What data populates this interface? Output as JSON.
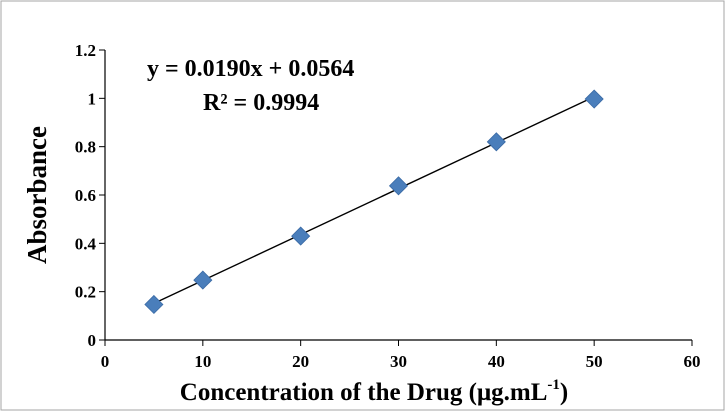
{
  "chart_data": {
    "type": "scatter",
    "title": "",
    "xlabel": "Concentration of the Drug (μg.mL",
    "xlabel_superscript": "-1",
    "xlabel_suffix": ")",
    "ylabel": "Absorbance",
    "xlim": [
      0,
      60
    ],
    "ylim": [
      0,
      1.2
    ],
    "x_ticks": [
      "0",
      "10",
      "20",
      "30",
      "40",
      "50",
      "60"
    ],
    "y_ticks": [
      "0",
      "0.2",
      "0.4",
      "0.6",
      "0.8",
      "1",
      "1.2"
    ],
    "grid": false,
    "legend": "none",
    "marker": "diamond",
    "series": [
      {
        "x": [
          5,
          10,
          20,
          30,
          40,
          50
        ],
        "y": [
          0.147,
          0.248,
          0.43,
          0.638,
          0.82,
          0.997
        ],
        "color": "#4a7ebb"
      }
    ],
    "trendline": {
      "slope": 0.019,
      "intercept": 0.0564,
      "x_range": [
        5,
        50
      ],
      "color": "#000000"
    },
    "annotations": {
      "equation": "y = 0.0190x + 0.0564",
      "r_squared": "R² = 0.9994"
    }
  }
}
